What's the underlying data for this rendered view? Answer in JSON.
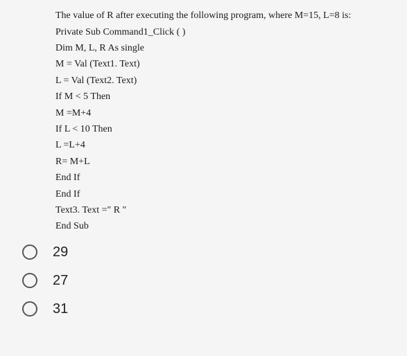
{
  "question": {
    "prompt": "The value of R after executing the following program, where M=15, L=8 is:",
    "code_lines": [
      "Private Sub Command1_Click ( )",
      "Dim M, L, R As single",
      "M = Val (Text1. Text)",
      "L = Val (Text2. Text)",
      "If M < 5 Then",
      "M =M+4",
      "If L < 10 Then",
      "L =L+4",
      "R= M+L",
      "End If",
      "End If",
      "Text3. Text =\" R \"",
      "End Sub"
    ]
  },
  "options": [
    {
      "label": "29"
    },
    {
      "label": "27"
    },
    {
      "label": "31"
    }
  ],
  "styles": {
    "background_color": "#f5f5f5",
    "text_color": "#1a1a1a",
    "question_fontsize": 14,
    "option_fontsize": 20,
    "radio_border_color": "#555555"
  }
}
